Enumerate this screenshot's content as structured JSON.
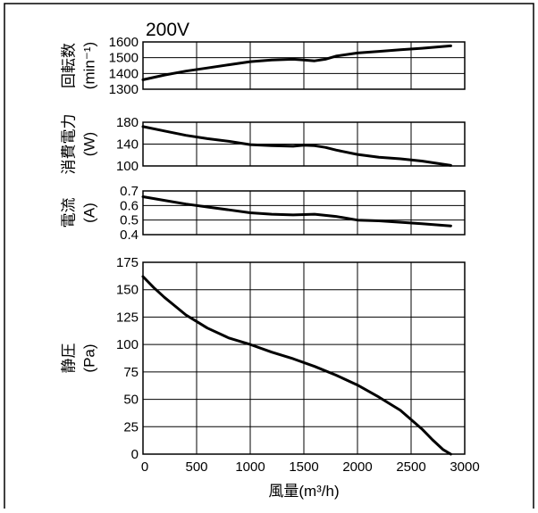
{
  "chart_data": {
    "title": "200V",
    "xlabel": "風量(m³/h)",
    "xlim": [
      0,
      3000
    ],
    "x_ticks": [
      "0",
      "500",
      "1000",
      "1500",
      "2000",
      "2500",
      "3000"
    ],
    "grid": true,
    "panels": [
      {
        "key": "speed",
        "type": "line",
        "ylabel_main": "回転数",
        "ylabel_unit": "(min⁻¹)",
        "ylim": [
          1300,
          1600
        ],
        "y_ticks": [
          "1300",
          "1400",
          "1500",
          "1600"
        ],
        "series": [
          {
            "x": [
              0,
              200,
              400,
              600,
              800,
              1000,
              1200,
              1400,
              1500,
              1600,
              1700,
              1800,
              2000,
              2200,
              2400,
              2600,
              2870
            ],
            "y": [
              1360,
              1390,
              1415,
              1435,
              1455,
              1475,
              1485,
              1490,
              1485,
              1480,
              1490,
              1510,
              1530,
              1540,
              1550,
              1560,
              1575
            ]
          }
        ]
      },
      {
        "key": "power",
        "type": "line",
        "ylabel_main": "消費電力",
        "ylabel_unit": "(W)",
        "ylim": [
          100,
          180
        ],
        "y_ticks": [
          "100",
          "140",
          "180"
        ],
        "series": [
          {
            "x": [
              0,
              200,
              400,
              600,
              800,
              1000,
              1200,
              1400,
              1500,
              1600,
              1700,
              1800,
              2000,
              2200,
              2400,
              2600,
              2870
            ],
            "y": [
              172,
              164,
              156,
              150,
              145,
              139,
              137,
              136,
              138,
              137,
              134,
              129,
              121,
              116,
              113,
              109,
              101
            ]
          }
        ]
      },
      {
        "key": "current",
        "type": "line",
        "ylabel_main": "電流",
        "ylabel_unit": "(A)",
        "ylim": [
          0.4,
          0.7
        ],
        "y_ticks": [
          "0.4",
          "0.5",
          "0.6",
          "0.7"
        ],
        "series": [
          {
            "x": [
              0,
              200,
              400,
              600,
              800,
              1000,
              1200,
              1400,
              1600,
              1800,
              2000,
              2200,
              2400,
              2600,
              2870
            ],
            "y": [
              0.66,
              0.635,
              0.61,
              0.59,
              0.57,
              0.55,
              0.54,
              0.535,
              0.54,
              0.525,
              0.5,
              0.495,
              0.485,
              0.475,
              0.46
            ]
          }
        ]
      },
      {
        "key": "pressure",
        "type": "line",
        "ylabel_main": "静圧",
        "ylabel_unit": "(Pa)",
        "ylim": [
          0,
          175
        ],
        "y_ticks": [
          "0",
          "25",
          "50",
          "75",
          "100",
          "125",
          "150",
          "175"
        ],
        "series": [
          {
            "x": [
              0,
              100,
              200,
              300,
              400,
              500,
              600,
              800,
              1000,
              1200,
              1400,
              1600,
              1800,
              2000,
              2200,
              2400,
              2600,
              2700,
              2800,
              2870
            ],
            "y": [
              162,
              152,
              143,
              135,
              127,
              121,
              115,
              106,
              100,
              93,
              87,
              80,
              72,
              63,
              52,
              40,
              23,
              13,
              4,
              0
            ]
          }
        ]
      }
    ]
  }
}
